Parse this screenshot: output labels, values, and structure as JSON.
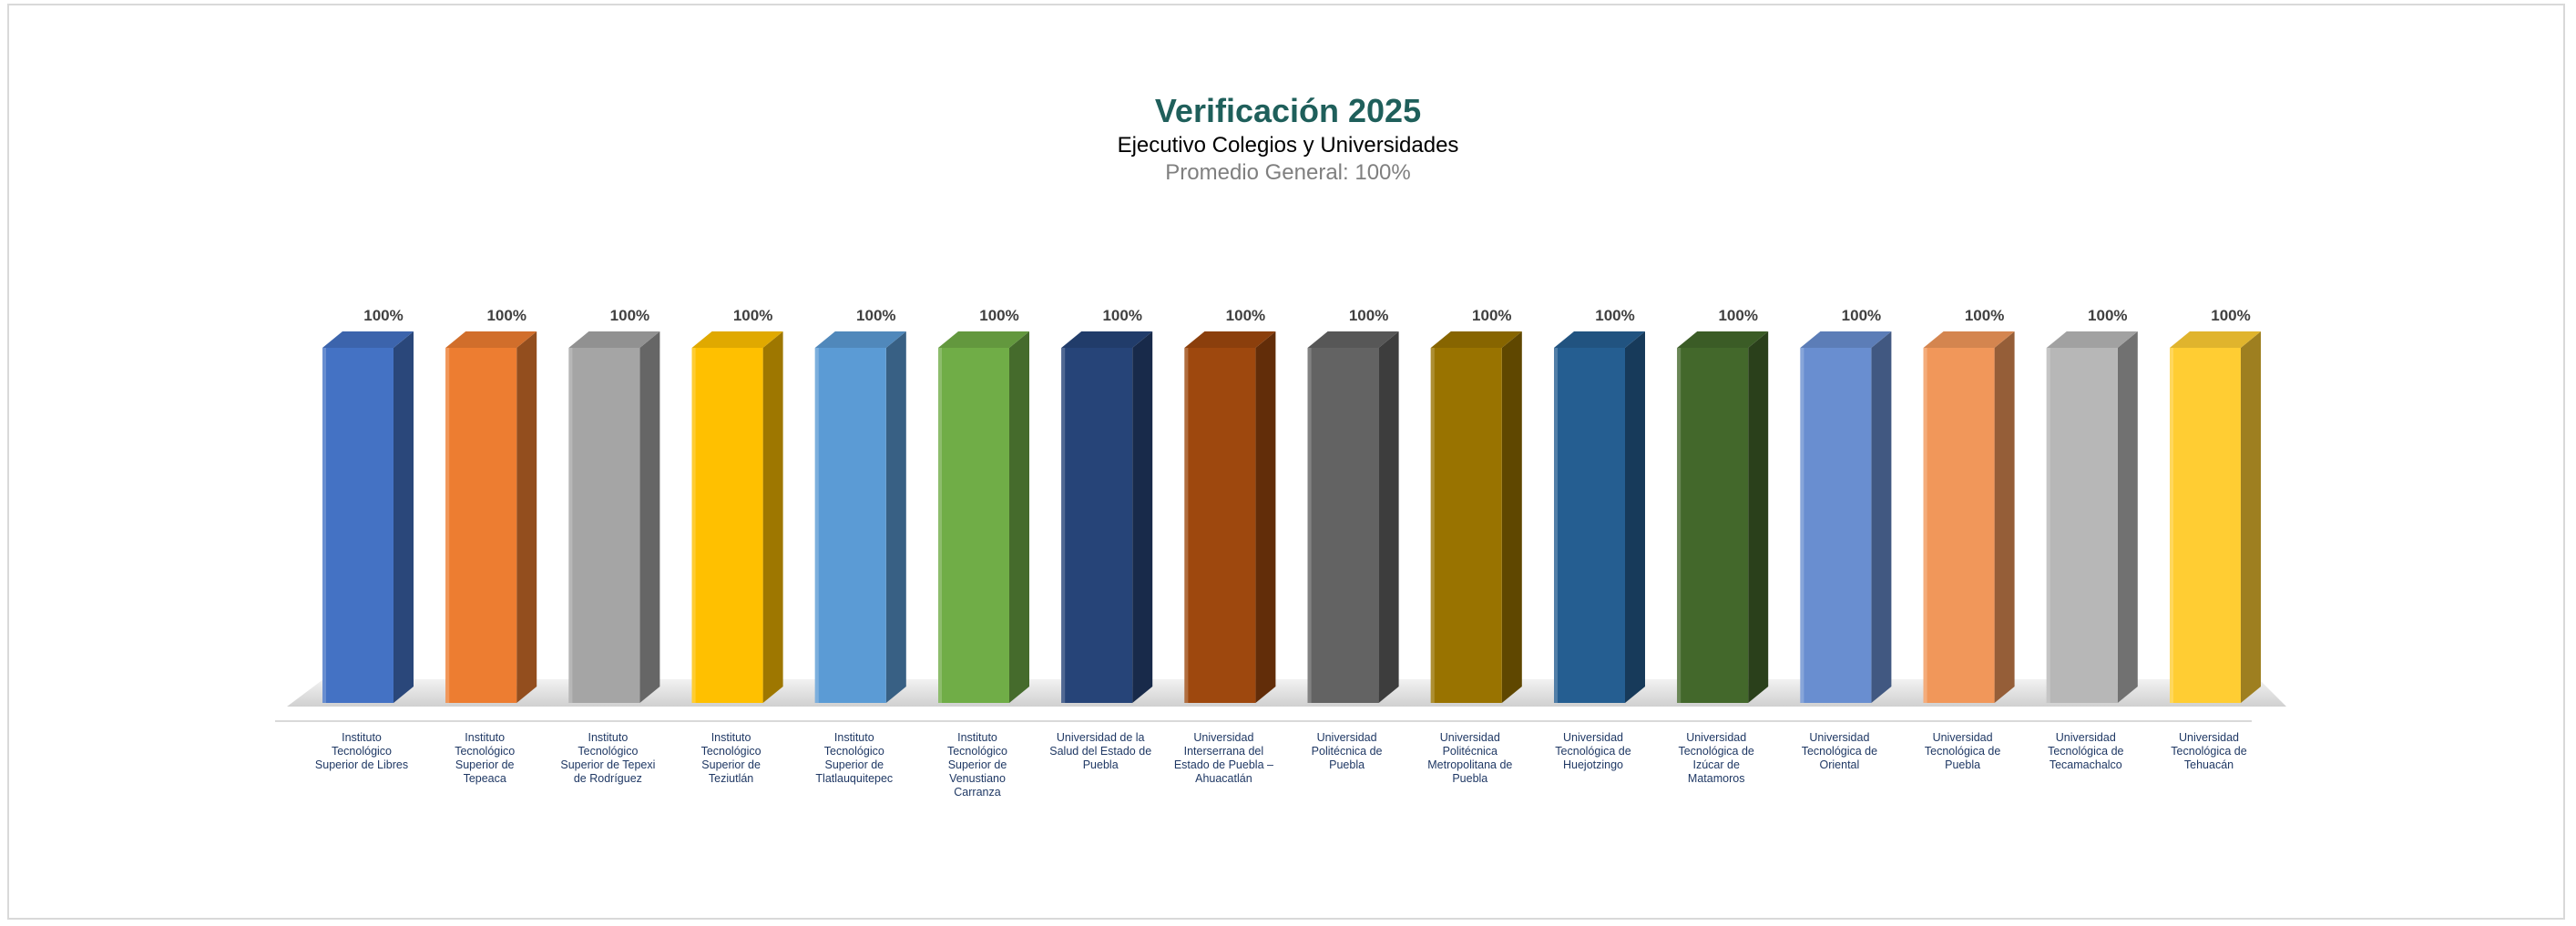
{
  "chart_data": {
    "type": "bar",
    "title": "Verificación 2025",
    "subtitle": "Ejecutivo Colegios y Universidades",
    "summary": "Promedio General: 100%",
    "value_suffix": "%",
    "ylim": [
      0,
      100
    ],
    "grid": false,
    "legend": "none",
    "style": "3d-column",
    "categories": [
      [
        "Instituto",
        "Tecnológico",
        "Superior de Libres"
      ],
      [
        "Instituto",
        "Tecnológico",
        "Superior de",
        "Tepeaca"
      ],
      [
        "Instituto",
        "Tecnológico",
        "Superior de Tepexi",
        "de Rodríguez"
      ],
      [
        "Instituto",
        "Tecnológico",
        "Superior de",
        "Teziutlán"
      ],
      [
        "Instituto",
        "Tecnológico",
        "Superior de",
        "Tlatlauquitepec"
      ],
      [
        "Instituto",
        "Tecnológico",
        "Superior de",
        "Venustiano",
        "Carranza"
      ],
      [
        "Universidad de la",
        "Salud del Estado de",
        "Puebla"
      ],
      [
        "Universidad",
        "Interserrana  del",
        "Estado de Puebla –",
        "Ahuacatlán"
      ],
      [
        "Universidad",
        "Politécnica de",
        "Puebla"
      ],
      [
        "Universidad",
        "Politécnica",
        "Metropolitana de",
        "Puebla"
      ],
      [
        "Universidad",
        "Tecnológica de",
        "Huejotzingo"
      ],
      [
        "Universidad",
        "Tecnológica de",
        "Izúcar de",
        "Matamoros"
      ],
      [
        "Universidad",
        "Tecnológica de",
        "Oriental"
      ],
      [
        "Universidad",
        "Tecnológica de",
        "Puebla"
      ],
      [
        "Universidad",
        "Tecnológica de",
        "Tecamachalco"
      ],
      [
        "Universidad",
        "Tecnológica de",
        "Tehuacán"
      ]
    ],
    "values": [
      100,
      100,
      100,
      100,
      100,
      100,
      100,
      100,
      100,
      100,
      100,
      100,
      100,
      100,
      100,
      100
    ],
    "colors": [
      "#4472c4",
      "#ed7d31",
      "#a5a5a5",
      "#ffc000",
      "#5b9bd5",
      "#70ad47",
      "#264478",
      "#9e480e",
      "#636363",
      "#997300",
      "#255e91",
      "#43682b",
      "#698ed0",
      "#f1975a",
      "#b7b7b7",
      "#ffcd33"
    ]
  }
}
